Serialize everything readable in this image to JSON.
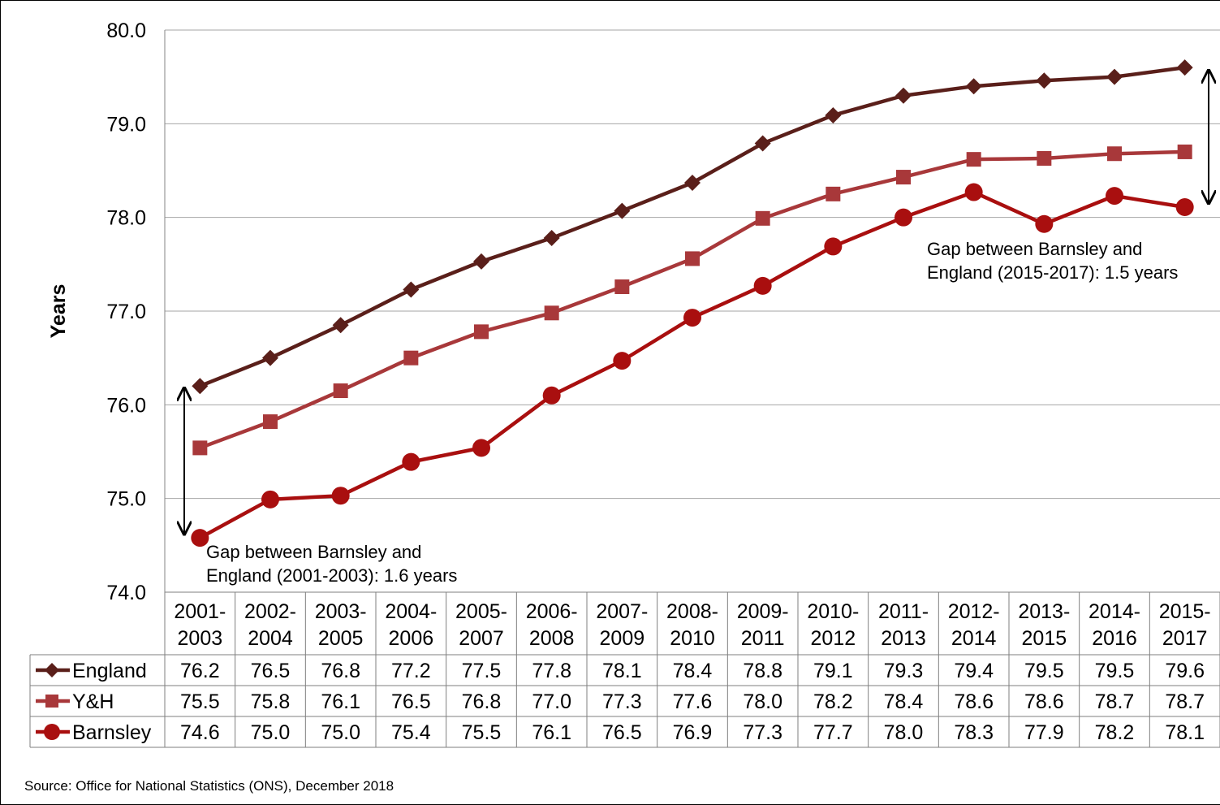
{
  "chart_data": {
    "type": "line",
    "ylabel": "Years",
    "ylim": [
      74.0,
      80.0
    ],
    "yticks": [
      "74.0",
      "75.0",
      "76.0",
      "77.0",
      "78.0",
      "79.0",
      "80.0"
    ],
    "grid": true,
    "categories": [
      [
        "2001-",
        "2003"
      ],
      [
        "2002-",
        "2004"
      ],
      [
        "2003-",
        "2005"
      ],
      [
        "2004-",
        "2006"
      ],
      [
        "2005-",
        "2007"
      ],
      [
        "2006-",
        "2008"
      ],
      [
        "2007-",
        "2009"
      ],
      [
        "2008-",
        "2010"
      ],
      [
        "2009-",
        "2011"
      ],
      [
        "2010-",
        "2012"
      ],
      [
        "2011-",
        "2013"
      ],
      [
        "2012-",
        "2014"
      ],
      [
        "2013-",
        "2015"
      ],
      [
        "2014-",
        "2016"
      ],
      [
        "2015-",
        "2017"
      ]
    ],
    "series": [
      {
        "name": "England",
        "marker": "diamond",
        "color": "#5a1f1a",
        "values": [
          76.2,
          76.5,
          76.8,
          77.2,
          77.5,
          77.8,
          78.1,
          78.4,
          78.8,
          79.1,
          79.3,
          79.4,
          79.5,
          79.5,
          79.6
        ],
        "plot_values": [
          76.2,
          76.5,
          76.85,
          77.23,
          77.53,
          77.78,
          78.07,
          78.37,
          78.79,
          79.09,
          79.3,
          79.4,
          79.46,
          79.5,
          79.6
        ]
      },
      {
        "name": "Y&H",
        "marker": "square",
        "color": "#a8383a",
        "values": [
          75.5,
          75.8,
          76.1,
          76.5,
          76.8,
          77.0,
          77.3,
          77.6,
          78.0,
          78.2,
          78.4,
          78.6,
          78.6,
          78.7,
          78.7
        ],
        "plot_values": [
          75.54,
          75.82,
          76.15,
          76.5,
          76.78,
          76.98,
          77.26,
          77.56,
          77.99,
          78.25,
          78.43,
          78.62,
          78.63,
          78.68,
          78.7
        ]
      },
      {
        "name": "Barnsley",
        "marker": "circle",
        "color": "#a90f0f",
        "values": [
          74.6,
          75.0,
          75.0,
          75.4,
          75.5,
          76.1,
          76.5,
          76.9,
          77.3,
          77.7,
          78.0,
          78.3,
          77.9,
          78.2,
          78.1
        ],
        "plot_values": [
          74.58,
          74.99,
          75.03,
          75.39,
          75.54,
          76.1,
          76.47,
          76.93,
          77.27,
          77.69,
          78.0,
          78.27,
          77.93,
          78.23,
          78.11
        ]
      }
    ],
    "table_values": [
      [
        "76.2",
        "76.5",
        "76.8",
        "77.2",
        "77.5",
        "77.8",
        "78.1",
        "78.4",
        "78.8",
        "79.1",
        "79.3",
        "79.4",
        "79.5",
        "79.5",
        "79.6"
      ],
      [
        "75.5",
        "75.8",
        "76.1",
        "76.5",
        "76.8",
        "77.0",
        "77.3",
        "77.6",
        "78.0",
        "78.2",
        "78.4",
        "78.6",
        "78.6",
        "78.7",
        "78.7"
      ],
      [
        "74.6",
        "75.0",
        "75.0",
        "75.4",
        "75.5",
        "76.1",
        "76.5",
        "76.9",
        "77.3",
        "77.7",
        "78.0",
        "78.3",
        "77.9",
        "78.2",
        "78.1"
      ]
    ],
    "annotations": [
      {
        "lines": [
          "Gap between Barnsley and",
          "England (2001-2003): 1.6 years"
        ],
        "category_index": 0,
        "from": 74.6,
        "to": 76.2
      },
      {
        "lines": [
          "Gap between Barnsley and",
          "England (2015-2017): 1.5 years"
        ],
        "category_index": 14,
        "from": 78.1,
        "to": 79.6
      }
    ]
  },
  "source": "Source: Office for National Statistics (ONS), December 2018"
}
